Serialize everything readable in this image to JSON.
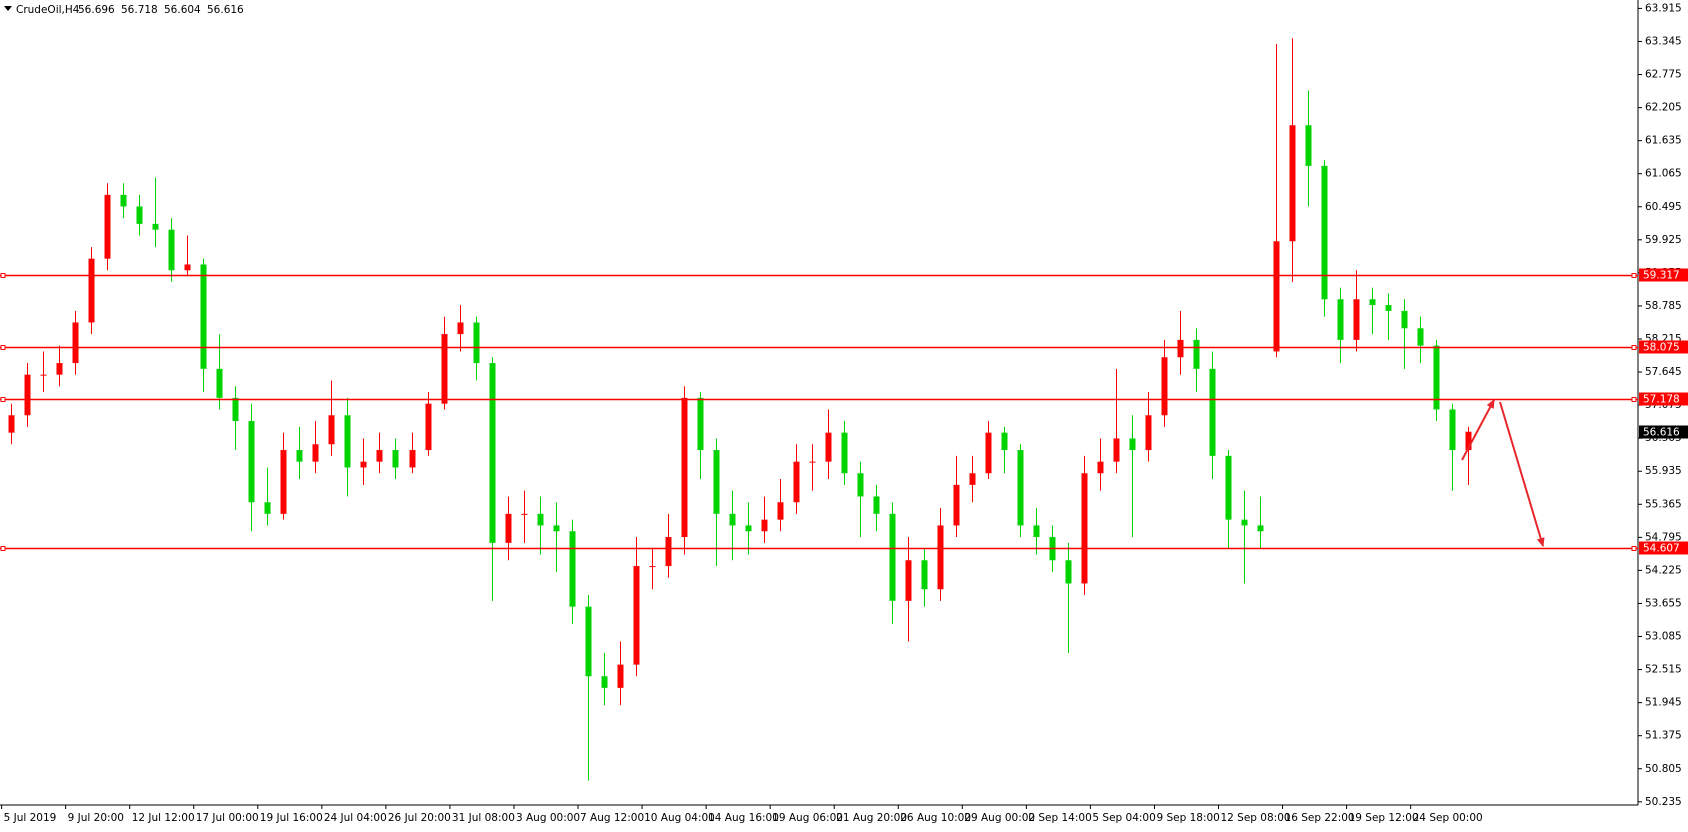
{
  "chart_data": {
    "type": "candlestick",
    "title": "CrudeOil,H4",
    "quote": [
      56.696,
      56.718,
      56.604,
      56.616
    ],
    "up_color": "#ff0000",
    "down_color": "#00d400",
    "level_color": "#ff0000",
    "grid": false,
    "xlim": [
      -0.7,
      101.6
    ],
    "ylim": [
      50.18,
      64.06
    ],
    "yticks": [
      63.915,
      63.345,
      62.775,
      62.205,
      61.635,
      61.065,
      60.495,
      59.925,
      59.355,
      58.785,
      58.215,
      57.645,
      57.075,
      56.505,
      55.935,
      55.365,
      54.795,
      54.225,
      53.655,
      53.085,
      52.515,
      51.945,
      51.375,
      50.805,
      50.235
    ],
    "xticks": [
      {
        "value": -0.6,
        "label": "5 Jul 2019"
      },
      {
        "value": 3.4,
        "label": "9 Jul 20:00"
      },
      {
        "value": 7.4,
        "label": "12 Jul 12:00"
      },
      {
        "value": 11.4,
        "label": "17 Jul 00:00"
      },
      {
        "value": 15.4,
        "label": "19 Jul 16:00"
      },
      {
        "value": 19.4,
        "label": "24 Jul 04:00"
      },
      {
        "value": 23.4,
        "label": "26 Jul 20:00"
      },
      {
        "value": 27.4,
        "label": "31 Jul 08:00"
      },
      {
        "value": 31.4,
        "label": "3 Aug 00:00"
      },
      {
        "value": 35.4,
        "label": "7 Aug 12:00"
      },
      {
        "value": 39.4,
        "label": "10 Aug 04:00"
      },
      {
        "value": 43.4,
        "label": "14 Aug 16:00"
      },
      {
        "value": 47.4,
        "label": "19 Aug 06:00"
      },
      {
        "value": 51.4,
        "label": "21 Aug 20:00"
      },
      {
        "value": 55.4,
        "label": "26 Aug 10:00"
      },
      {
        "value": 59.4,
        "label": "29 Aug 00:00"
      },
      {
        "value": 63.4,
        "label": "2 Sep 14:00"
      },
      {
        "value": 67.4,
        "label": "5 Sep 04:00"
      },
      {
        "value": 71.4,
        "label": "9 Sep 18:00"
      },
      {
        "value": 75.4,
        "label": "12 Sep 08:00"
      },
      {
        "value": 79.4,
        "label": "16 Sep 22:00"
      },
      {
        "value": 83.4,
        "label": "19 Sep 12:00"
      },
      {
        "value": 87.4,
        "label": "24 Sep 00:00"
      }
    ],
    "levels": [
      59.317,
      58.075,
      57.178,
      54.607
    ],
    "open": [
      56.6,
      56.9,
      57.6,
      57.6,
      57.8,
      58.5,
      59.6,
      60.7,
      60.5,
      60.2,
      60.1,
      59.4,
      59.5,
      57.7,
      57.2,
      56.8,
      55.4,
      55.2,
      56.3,
      56.1,
      56.4,
      56.9,
      56.0,
      56.1,
      56.3,
      56.0,
      56.3,
      57.1,
      58.3,
      58.5,
      57.8,
      54.7,
      55.2,
      55.2,
      55.0,
      54.9,
      53.6,
      52.4,
      52.2,
      52.6,
      54.3,
      54.3,
      54.8,
      57.2,
      56.3,
      55.2,
      55.0,
      54.9,
      55.1,
      55.4,
      56.1,
      56.1,
      56.6,
      55.9,
      55.5,
      55.2,
      53.7,
      54.4,
      53.9,
      55.0,
      55.7,
      55.9,
      56.6,
      56.3,
      55.0,
      54.8,
      54.4,
      54.0,
      55.9,
      56.1,
      56.5,
      56.3,
      56.9,
      57.9,
      58.2,
      57.7,
      56.2,
      55.1,
      55.0,
      58.0,
      59.9,
      61.9,
      61.2,
      58.9,
      58.2,
      58.9,
      58.8,
      58.7,
      58.4,
      58.1,
      57.0,
      56.3
    ],
    "high": [
      57.1,
      57.8,
      58.0,
      58.1,
      58.7,
      59.8,
      60.9,
      60.9,
      60.7,
      61.0,
      60.3,
      60.0,
      59.6,
      58.3,
      57.4,
      57.1,
      56.0,
      56.6,
      56.7,
      56.8,
      57.5,
      57.2,
      56.5,
      56.6,
      56.5,
      56.6,
      57.3,
      58.6,
      58.8,
      58.6,
      57.9,
      55.5,
      55.6,
      55.5,
      55.4,
      55.1,
      53.8,
      52.8,
      53.0,
      54.8,
      54.6,
      55.2,
      57.4,
      57.3,
      56.5,
      55.6,
      55.4,
      55.5,
      55.8,
      56.4,
      56.4,
      57.0,
      56.8,
      56.1,
      55.7,
      55.4,
      54.8,
      54.6,
      55.3,
      56.2,
      56.2,
      56.8,
      56.7,
      56.4,
      55.3,
      55.0,
      54.7,
      56.2,
      56.5,
      57.7,
      56.9,
      57.3,
      58.2,
      58.7,
      58.4,
      58.0,
      56.3,
      55.6,
      55.5,
      63.3,
      63.4,
      62.5,
      61.3,
      59.1,
      59.4,
      59.1,
      59.0,
      58.9,
      58.6,
      58.2,
      57.1,
      56.7
    ],
    "low": [
      56.4,
      56.7,
      57.3,
      57.4,
      57.6,
      58.3,
      59.4,
      60.3,
      60.0,
      59.8,
      59.2,
      59.3,
      57.3,
      57.0,
      56.3,
      54.9,
      55.0,
      55.1,
      55.8,
      55.9,
      56.2,
      55.5,
      55.7,
      55.9,
      55.8,
      55.9,
      56.2,
      57.0,
      58.0,
      57.5,
      53.7,
      54.4,
      54.7,
      54.5,
      54.2,
      53.3,
      50.6,
      51.9,
      51.9,
      52.4,
      53.9,
      54.1,
      54.5,
      55.8,
      54.3,
      54.4,
      54.5,
      54.7,
      54.9,
      55.2,
      55.6,
      55.8,
      55.7,
      54.8,
      54.9,
      53.3,
      53.0,
      53.6,
      53.7,
      54.8,
      55.4,
      55.8,
      55.9,
      54.8,
      54.5,
      54.2,
      52.8,
      53.8,
      55.6,
      55.9,
      54.8,
      56.1,
      56.7,
      57.6,
      57.3,
      55.8,
      54.6,
      54.0,
      54.6,
      57.9,
      59.2,
      60.5,
      58.6,
      57.8,
      58.0,
      58.3,
      58.2,
      57.7,
      57.8,
      56.8,
      55.6,
      55.7
    ],
    "close": [
      56.9,
      57.6,
      57.6,
      57.8,
      58.5,
      59.6,
      60.7,
      60.5,
      60.2,
      60.1,
      59.4,
      59.5,
      57.7,
      57.2,
      56.8,
      55.4,
      55.2,
      56.3,
      56.1,
      56.4,
      56.9,
      56.0,
      56.1,
      56.3,
      56.0,
      56.3,
      57.1,
      58.3,
      58.5,
      57.8,
      54.7,
      55.2,
      55.2,
      55.0,
      54.9,
      53.6,
      52.4,
      52.2,
      52.6,
      54.3,
      54.3,
      54.8,
      57.2,
      56.3,
      55.2,
      55.0,
      54.9,
      55.1,
      55.4,
      56.1,
      56.1,
      56.6,
      55.9,
      55.5,
      55.2,
      53.7,
      54.4,
      53.9,
      55.0,
      55.7,
      55.9,
      56.6,
      56.3,
      55.0,
      54.8,
      54.4,
      54.0,
      55.9,
      56.1,
      56.5,
      56.3,
      56.9,
      57.9,
      58.2,
      57.7,
      56.2,
      55.1,
      55.0,
      54.9,
      59.9,
      61.9,
      61.2,
      58.9,
      58.2,
      58.9,
      58.8,
      58.7,
      58.4,
      58.1,
      57.0,
      56.3,
      56.616
    ]
  }
}
